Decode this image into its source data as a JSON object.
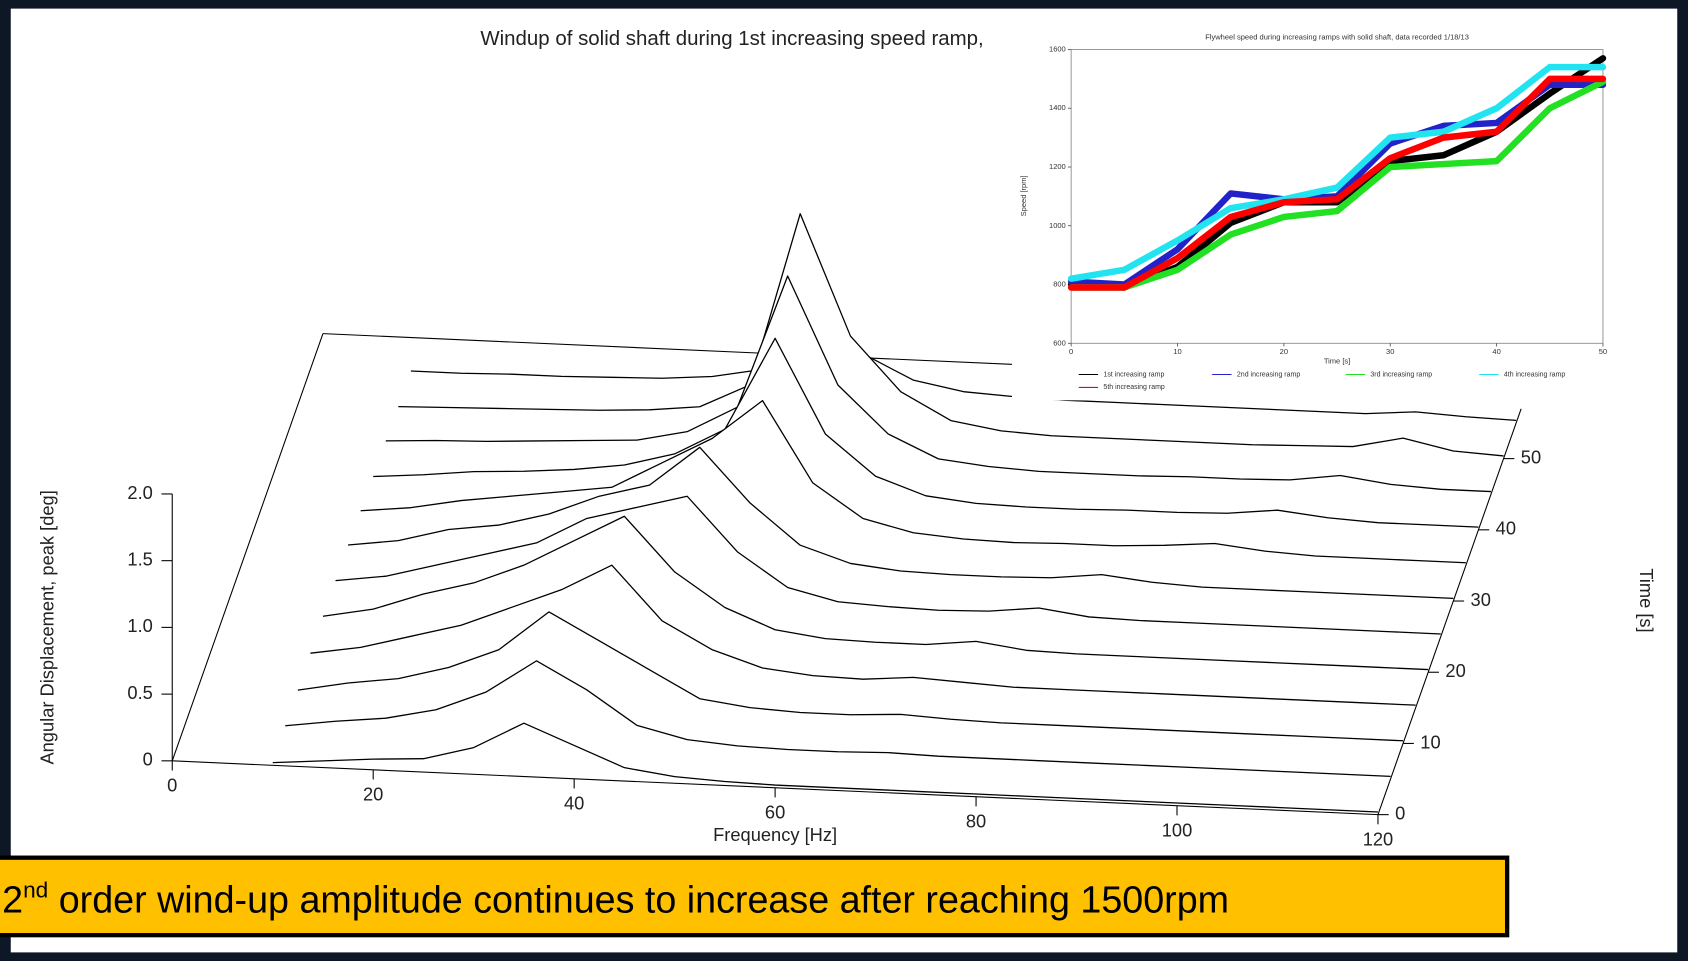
{
  "chart_data": [
    {
      "type": "waterfall",
      "title": "Windup of solid shaft during 1st increasing speed ramp,",
      "xlabel": "Frequency [Hz]",
      "ylabel": "Time [s]",
      "zlabel": "Angular Displacement, peak [deg]",
      "x": [
        10,
        15,
        20,
        25,
        30,
        35,
        40,
        45,
        50,
        55,
        60,
        65,
        70,
        75,
        80,
        85,
        90,
        95,
        100,
        105,
        110,
        115,
        120
      ],
      "times": [
        0,
        5,
        10,
        15,
        20,
        25,
        30,
        35,
        40,
        45,
        50,
        55
      ],
      "slices": [
        [
          0.02,
          0.05,
          0.08,
          0.1,
          0.2,
          0.4,
          0.25,
          0.1,
          0.05,
          0.03,
          0.02,
          0.02,
          0.02,
          0.02,
          0.02,
          0.02,
          0.02,
          0.02,
          0.02,
          0.02,
          0.02,
          0.02,
          0.02
        ],
        [
          0.03,
          0.08,
          0.12,
          0.2,
          0.35,
          0.6,
          0.4,
          0.15,
          0.06,
          0.03,
          0.02,
          0.02,
          0.03,
          0.02,
          0.02,
          0.02,
          0.02,
          0.02,
          0.02,
          0.02,
          0.02,
          0.02,
          0.02
        ],
        [
          0.03,
          0.1,
          0.15,
          0.25,
          0.4,
          0.7,
          0.5,
          0.3,
          0.1,
          0.05,
          0.03,
          0.03,
          0.05,
          0.03,
          0.02,
          0.02,
          0.02,
          0.02,
          0.02,
          0.02,
          0.02,
          0.02,
          0.02
        ],
        [
          0.04,
          0.1,
          0.2,
          0.3,
          0.45,
          0.6,
          0.8,
          0.4,
          0.2,
          0.08,
          0.04,
          0.03,
          0.06,
          0.04,
          0.02,
          0.02,
          0.02,
          0.02,
          0.02,
          0.02,
          0.02,
          0.02,
          0.02
        ],
        [
          0.05,
          0.12,
          0.25,
          0.35,
          0.5,
          0.7,
          0.9,
          0.5,
          0.25,
          0.1,
          0.05,
          0.04,
          0.04,
          0.08,
          0.03,
          0.02,
          0.02,
          0.02,
          0.02,
          0.02,
          0.02,
          0.02,
          0.02
        ],
        [
          0.05,
          0.1,
          0.2,
          0.3,
          0.4,
          0.6,
          0.7,
          0.8,
          0.4,
          0.15,
          0.06,
          0.04,
          0.03,
          0.04,
          0.08,
          0.03,
          0.02,
          0.02,
          0.02,
          0.02,
          0.02,
          0.02,
          0.02
        ],
        [
          0.05,
          0.1,
          0.2,
          0.25,
          0.35,
          0.5,
          0.6,
          0.9,
          0.5,
          0.2,
          0.08,
          0.04,
          0.03,
          0.03,
          0.04,
          0.08,
          0.04,
          0.02,
          0.02,
          0.02,
          0.02,
          0.02,
          0.02
        ],
        [
          0.04,
          0.08,
          0.15,
          0.2,
          0.25,
          0.3,
          0.5,
          0.7,
          1.0,
          0.4,
          0.15,
          0.06,
          0.03,
          0.02,
          0.03,
          0.03,
          0.05,
          0.08,
          0.04,
          0.02,
          0.02,
          0.02,
          0.02
        ],
        [
          0.03,
          0.06,
          0.1,
          0.12,
          0.15,
          0.2,
          0.3,
          0.5,
          1.2,
          0.5,
          0.2,
          0.07,
          0.03,
          0.02,
          0.02,
          0.03,
          0.03,
          0.04,
          0.08,
          0.04,
          0.02,
          0.02,
          0.02
        ],
        [
          0.03,
          0.05,
          0.06,
          0.08,
          0.1,
          0.12,
          0.2,
          0.4,
          1.4,
          0.6,
          0.25,
          0.08,
          0.04,
          0.02,
          0.02,
          0.02,
          0.03,
          0.03,
          0.04,
          0.09,
          0.04,
          0.02,
          0.02
        ],
        [
          0.02,
          0.03,
          0.04,
          0.05,
          0.06,
          0.08,
          0.12,
          0.3,
          1.6,
          0.7,
          0.3,
          0.1,
          0.04,
          0.02,
          0.02,
          0.02,
          0.02,
          0.02,
          0.03,
          0.04,
          0.12,
          0.04,
          0.02
        ],
        [
          0.02,
          0.02,
          0.03,
          0.03,
          0.04,
          0.05,
          0.08,
          0.15,
          0.4,
          0.3,
          0.12,
          0.05,
          0.03,
          0.02,
          0.02,
          0.02,
          0.02,
          0.02,
          0.02,
          0.02,
          0.05,
          0.03,
          0.02
        ]
      ],
      "xlim": [
        0,
        120
      ],
      "ylim": [
        0,
        60
      ],
      "zlim": [
        0,
        2
      ],
      "xticks": [
        0,
        20,
        40,
        60,
        80,
        100,
        120
      ],
      "yticks": [
        0,
        10,
        20,
        30,
        40,
        50
      ],
      "zticks": [
        0,
        0.5,
        {
          "value": 1,
          "label": "1.0"
        },
        1.5,
        {
          "value": 2,
          "label": "2.0"
        }
      ],
      "color": "#000000"
    },
    {
      "type": "line",
      "title": "Flywheel speed during increasing ramps with solid shaft, data recorded 1/18/13",
      "xlabel": "Time [s]",
      "ylabel": "Speed [rpm]",
      "x": [
        0,
        5,
        10,
        15,
        20,
        25,
        30,
        35,
        40,
        45,
        50
      ],
      "series": [
        {
          "name": "1st increasing ramp",
          "color": "#000000",
          "values": [
            800,
            790,
            860,
            1010,
            1080,
            1080,
            1220,
            1240,
            1320,
            1450,
            1570
          ]
        },
        {
          "name": "2nd increasing ramp",
          "color": "#2222c8",
          "values": [
            810,
            800,
            920,
            1110,
            1090,
            1100,
            1280,
            1340,
            1350,
            1480,
            1480
          ]
        },
        {
          "name": "3rd increasing ramp",
          "color": "#22e022",
          "values": [
            790,
            790,
            850,
            970,
            1030,
            1050,
            1200,
            1210,
            1220,
            1400,
            1490
          ]
        },
        {
          "name": "4th increasing ramp",
          "color": "#22e4f0",
          "values": [
            820,
            850,
            950,
            1060,
            1090,
            1130,
            1300,
            1320,
            1400,
            1540,
            1540
          ]
        },
        {
          "name": "5th increasing ramp",
          "color": "#ff0000",
          "values": [
            790,
            790,
            890,
            1030,
            1080,
            1090,
            1230,
            1300,
            1320,
            1500,
            1500
          ]
        }
      ],
      "xlim": [
        0,
        50
      ],
      "ylim": [
        600,
        1600
      ],
      "xticks": [
        0,
        10,
        20,
        30,
        40,
        50
      ],
      "yticks": [
        600,
        800,
        1000,
        1200,
        1400,
        1600
      ]
    }
  ],
  "caption": {
    "number": "2",
    "suffix": "nd",
    "text": " order wind-up amplitude continues to increase after reaching 1500rpm"
  }
}
